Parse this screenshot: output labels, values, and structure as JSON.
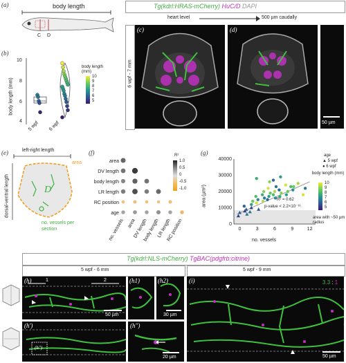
{
  "panel_labels": {
    "a": "(a)",
    "b": "(b)",
    "c": "(c)",
    "d": "(d)",
    "e": "(e)",
    "f": "(f)",
    "g": "(g)",
    "h": "(h)",
    "h1": "(h1)",
    "h2": "(h2)",
    "hp": "(h')",
    "hpp": "(h'')",
    "hpp_inset": "(h'')",
    "i": "(i)"
  },
  "panel_a": {
    "title": "body length",
    "c_label": "C",
    "d_label": "D"
  },
  "panel_b": {
    "ylabel": "body length (mm)",
    "yticks": [
      "10",
      "8",
      "6",
      "4"
    ],
    "xticks": [
      "5 wpf",
      "6 wpf"
    ],
    "colorbar_title": "body length (mm)",
    "colorbar_ticks": [
      "10",
      "9",
      "8",
      "7",
      "6",
      "5"
    ]
  },
  "micro_cd": {
    "header_tg": "Tg(kdrl:HRAS-mCherry)",
    "header_huc": " HuC/D",
    "header_dapi": " DAPI",
    "side_label": "6 wpf - 7 mm",
    "arrow_left": "heart level",
    "arrow_right": "500 µm caudally",
    "scale_bar": "50 µm"
  },
  "panel_e": {
    "top_label": "left-right length",
    "side_label": "dorsal-ventral length",
    "area_label": "area",
    "vessels_label": "no. vessels per section"
  },
  "panel_f": {
    "rows": [
      "area",
      "DV length",
      "body length",
      "LR length",
      "RC position",
      "age"
    ],
    "cols": [
      "no. vessels",
      "area",
      "DV length",
      "body length",
      "LR length",
      "RC position"
    ],
    "legend_title": "R²",
    "legend_ticks": [
      "1.0",
      "0.5",
      "0",
      "-0.5",
      "-1.0"
    ]
  },
  "panel_g": {
    "ylabel": "area (µm²)",
    "xlabel": "no. vessels",
    "yticks": [
      "40000",
      "30000",
      "20000",
      "10000",
      "0"
    ],
    "xticks": [
      "0",
      "3",
      "6",
      "9",
      "12"
    ],
    "r2": "R² = 0.62",
    "pvalue": "p-value < 2.2×10⁻¹⁶",
    "legend_age_title": "age",
    "legend_age": [
      "▲ 5 wpf",
      "● 6 wpf"
    ],
    "legend_len_title": "body length (mm)",
    "legend_len_ticks": [
      "10",
      "9",
      "8",
      "7",
      "6",
      "5"
    ],
    "area_note": "area with ~50 µm radius"
  },
  "micro_hi": {
    "header_tg1": "Tg(kdrl:NLS-mCherry)",
    "header_tg2": " TgBAC(pdgfrb:citrine)",
    "h_title": "5 wpf - 6 mm",
    "i_title": "5 wpf - 9 mm",
    "marker_1": "1",
    "marker_2": "2",
    "ratio_green": "3.3",
    "ratio_sep": " : ",
    "ratio_magenta": "1",
    "scale_h": "50 µm",
    "scale_h2": "30 µm",
    "scale_hpp": "20 µm",
    "scale_i": "50 µm"
  },
  "chart_data": [
    {
      "type": "scatter",
      "title": "",
      "xlabel": "",
      "ylabel": "body length (mm)",
      "categories": [
        "5 wpf",
        "6 wpf"
      ],
      "ylim": [
        4,
        10.5
      ],
      "series": [
        {
          "name": "5 wpf",
          "values": [
            6.9,
            6.7,
            6.3,
            6.1,
            5.2
          ]
        },
        {
          "name": "6 wpf",
          "values": [
            10.0,
            9.6,
            9.2,
            8.9,
            8.7,
            8.5,
            8.3,
            8.1,
            7.9,
            7.7,
            7.5,
            7.3,
            7.0,
            6.8,
            6.5,
            6.2,
            5.8,
            5.4,
            4.7
          ]
        }
      ]
    },
    {
      "type": "heatmap",
      "title": "",
      "rows": [
        "area",
        "DV length",
        "body length",
        "LR length",
        "RC position",
        "age"
      ],
      "cols": [
        "no. vessels",
        "area",
        "DV length",
        "body length",
        "LR length",
        "RC position"
      ],
      "legend": "R²",
      "range": [
        -1.0,
        1.0
      ],
      "values": [
        [
          0.62,
          null,
          null,
          null,
          null,
          null
        ],
        [
          0.55,
          0.85,
          null,
          null,
          null,
          null
        ],
        [
          0.45,
          0.65,
          0.55,
          null,
          null,
          null
        ],
        [
          0.5,
          0.75,
          0.5,
          0.6,
          null,
          null
        ],
        [
          -0.15,
          -0.2,
          -0.15,
          -0.1,
          -0.2,
          null
        ],
        [
          0.3,
          0.35,
          0.3,
          0.4,
          0.3,
          -0.3
        ]
      ]
    },
    {
      "type": "scatter",
      "title": "",
      "xlabel": "no. vessels",
      "ylabel": "area (µm²)",
      "xlim": [
        -1,
        13
      ],
      "ylim": [
        0,
        40000
      ],
      "annotations": [
        "R² = 0.62",
        "p-value < 2.2×10⁻¹⁶",
        "area with ~50 µm radius"
      ],
      "series": [
        {
          "name": "5 wpf",
          "x": [
            0,
            0,
            1,
            1,
            1,
            2,
            2,
            3
          ],
          "y": [
            5000,
            7000,
            6000,
            8000,
            9000,
            7500,
            10000,
            9000
          ]
        },
        {
          "name": "6 wpf",
          "x": [
            1,
            2,
            2,
            3,
            3,
            3,
            4,
            4,
            4,
            4,
            5,
            5,
            5,
            5,
            6,
            6,
            6,
            6,
            7,
            7,
            7,
            8,
            8,
            8,
            9,
            9,
            10,
            11,
            3,
            5,
            6,
            7,
            9,
            11
          ],
          "y": [
            11000,
            12000,
            14000,
            13000,
            15000,
            17000,
            14000,
            16000,
            18000,
            20000,
            15000,
            17000,
            19000,
            22000,
            16000,
            18000,
            20000,
            23000,
            17000,
            19000,
            21000,
            18000,
            20000,
            24000,
            21000,
            23000,
            25000,
            22000,
            28000,
            26000,
            27000,
            29000,
            23000,
            18000
          ]
        }
      ]
    }
  ]
}
